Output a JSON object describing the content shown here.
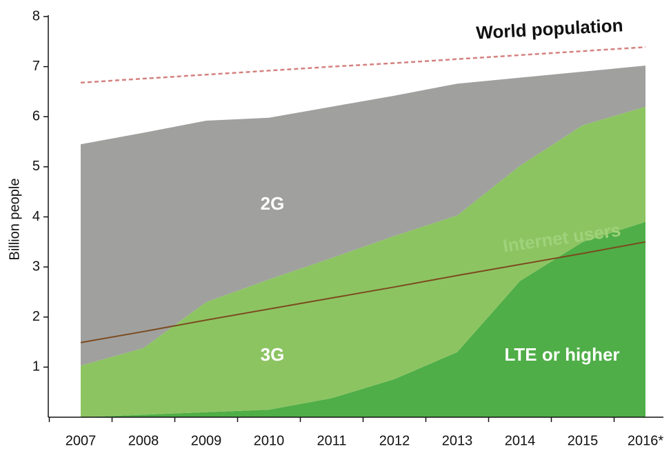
{
  "chart_data": {
    "type": "area",
    "stacked": true,
    "ylabel": "Billion people",
    "categories": [
      "2007",
      "2008",
      "2009",
      "2010",
      "2011",
      "2012",
      "2013",
      "2014",
      "2015",
      "2016*"
    ],
    "ylim": [
      0,
      8
    ],
    "yticks": [
      1,
      2,
      3,
      4,
      5,
      6,
      7,
      8
    ],
    "series": [
      {
        "name": "LTE or higher",
        "color": "#4fae47",
        "values": [
          0,
          0.05,
          0.1,
          0.15,
          0.38,
          0.76,
          1.3,
          2.72,
          3.5,
          3.9
        ]
      },
      {
        "name": "3G",
        "color": "#8dc462",
        "values": [
          1.03,
          1.33,
          2.2,
          2.6,
          2.8,
          2.86,
          2.73,
          2.3,
          2.33,
          2.3
        ]
      },
      {
        "name": "2G",
        "color": "#a0a09f",
        "values": [
          4.42,
          4.3,
          3.62,
          3.23,
          3.02,
          2.8,
          2.63,
          1.76,
          1.07,
          0.82
        ]
      }
    ],
    "lines": [
      {
        "name": "World population",
        "color": "#d4817f",
        "dashed": true,
        "values": [
          6.68,
          6.76,
          6.84,
          6.92,
          7.0,
          7.07,
          7.15,
          7.23,
          7.31,
          7.39
        ]
      },
      {
        "name": "Internet users",
        "color": "#7b4a1e",
        "dashed": false,
        "values": [
          1.49,
          1.71,
          1.94,
          2.16,
          2.38,
          2.6,
          2.83,
          3.05,
          3.27,
          3.5
        ]
      }
    ]
  }
}
